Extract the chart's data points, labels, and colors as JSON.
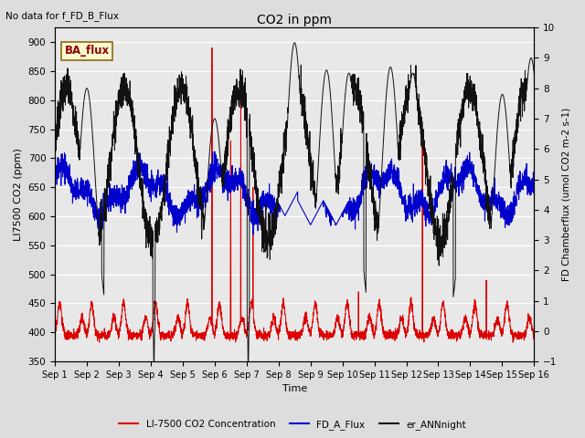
{
  "title": "CO2 in ppm",
  "top_left_text": "No data for f_FD_B_Flux",
  "box_label": "BA_flux",
  "xlabel": "Time",
  "ylabel_left": "LI7500 CO2 (ppm)",
  "ylabel_right": "FD Chamberflux (umol CO2 m-2 s-1)",
  "ylim_left": [
    350,
    925
  ],
  "ylim_right": [
    -1.0,
    10.0
  ],
  "yticks_left": [
    350,
    400,
    450,
    500,
    550,
    600,
    650,
    700,
    750,
    800,
    850,
    900
  ],
  "yticks_right": [
    -1.0,
    0.0,
    1.0,
    2.0,
    3.0,
    4.0,
    5.0,
    6.0,
    7.0,
    8.0,
    9.0,
    10.0
  ],
  "xtick_labels": [
    "Sep 1",
    "Sep 2",
    "Sep 3",
    "Sep 4",
    "Sep 5",
    "Sep 6",
    "Sep 7",
    "Sep 8",
    "Sep 9",
    "Sep 10",
    "Sep 11",
    "Sep 12",
    "Sep 13",
    "Sep 14",
    "Sep 15",
    "Sep 16"
  ],
  "bg_color": "#dddddd",
  "plot_bg_color": "#e8e8e8",
  "line_red_color": "#dd0000",
  "line_blue_color": "#0000cc",
  "line_black_color": "#111111",
  "legend_labels": [
    "LI-7500 CO2 Concentration",
    "FD_A_Flux",
    "er_ANNnight"
  ],
  "legend_colors": [
    "#dd0000",
    "#0000cc",
    "#111111"
  ],
  "box_label_color": "#8B0000",
  "box_bg_color": "#fffacd",
  "box_border_color": "#8B6914",
  "figsize": [
    6.4,
    4.8
  ],
  "dpi": 100
}
